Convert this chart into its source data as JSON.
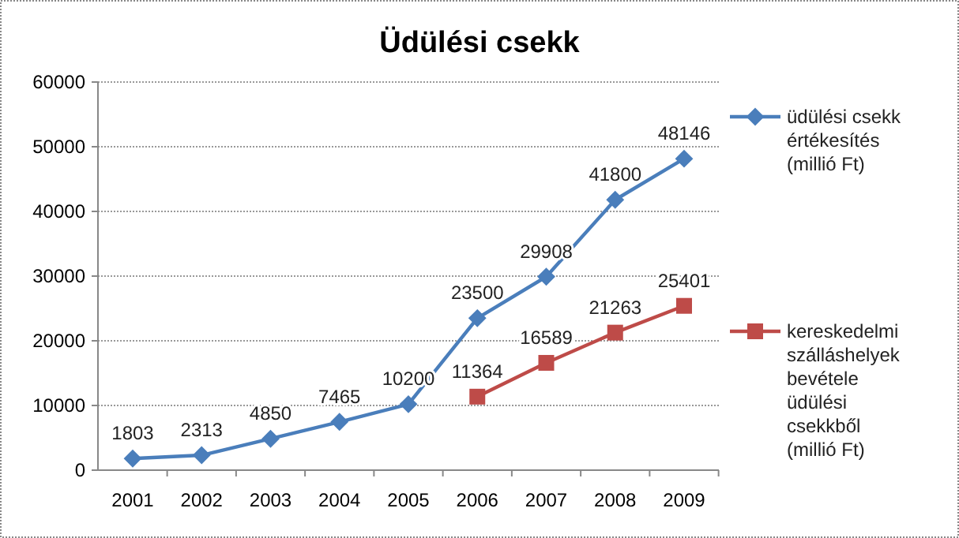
{
  "chart_data": {
    "type": "line",
    "title": "Üdülési csekk",
    "categories": [
      "2001",
      "2002",
      "2003",
      "2004",
      "2005",
      "2006",
      "2007",
      "2008",
      "2009"
    ],
    "series": [
      {
        "name": "üdülési csekk értékesítés (millió Ft)",
        "color": "#4a7ebb",
        "marker": "diamond",
        "values": [
          1803,
          2313,
          4850,
          7465,
          10200,
          23500,
          29908,
          41800,
          48146
        ]
      },
      {
        "name": "kereskedelmi szálláshelyek bevétele üdülési csekkből (millió Ft)",
        "color": "#be4b48",
        "marker": "square",
        "values": [
          null,
          null,
          null,
          null,
          null,
          11364,
          16589,
          21263,
          25401
        ]
      }
    ],
    "ylim": [
      0,
      60000
    ],
    "yticks": [
      0,
      10000,
      20000,
      30000,
      40000,
      50000,
      60000
    ],
    "grid": "y",
    "legend": "right",
    "data_labels": true
  }
}
